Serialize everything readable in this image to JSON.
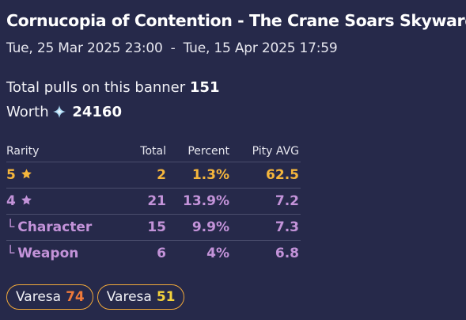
{
  "banner": {
    "title": "Cornucopia of Contention - The Crane Soars Skyward",
    "date_start": "Tue, 25 Mar 2025 23:00",
    "date_separator": "-",
    "date_end": "Tue, 15 Apr 2025 17:59"
  },
  "summary": {
    "pulls_label": "Total pulls on this banner",
    "pulls_value": "151",
    "worth_label": "Worth",
    "worth_icon": "primogem-icon",
    "worth_value": "24160"
  },
  "table": {
    "headers": {
      "rarity": "Rarity",
      "total": "Total",
      "percent": "Percent",
      "pity": "Pity AVG"
    },
    "rows": [
      {
        "label": "5",
        "icon": "star-icon",
        "total": "2",
        "percent": "1.3%",
        "pity": "62.5",
        "color": "#f5b63c"
      },
      {
        "label": "4",
        "icon": "star-icon",
        "total": "21",
        "percent": "13.9%",
        "pity": "7.2",
        "color": "#c393d9"
      },
      {
        "branch": "└",
        "label": "Character",
        "total": "15",
        "percent": "9.9%",
        "pity": "7.3",
        "color": "#c393d9"
      },
      {
        "branch": "└",
        "label": "Weapon",
        "total": "6",
        "percent": "4%",
        "pity": "6.8",
        "color": "#c393d9"
      }
    ]
  },
  "chips": [
    {
      "name": "Varesa",
      "count": "74",
      "count_color": "#f07a3a"
    },
    {
      "name": "Varesa",
      "count": "51",
      "count_color": "#f4d23c"
    }
  ]
}
